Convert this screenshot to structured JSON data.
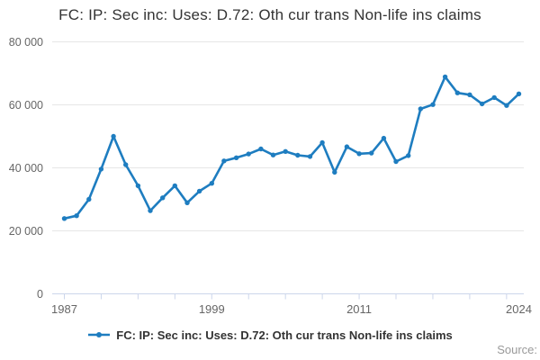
{
  "header": {
    "title": "FC: IP: Sec inc: Uses: D.72: Oth cur trans Non-life ins claims"
  },
  "legend": {
    "label": "FC: IP: Sec inc: Uses: D.72: Oth cur trans Non-life ins claims"
  },
  "footer": {
    "source_label": "Source:"
  },
  "chart_data": {
    "type": "line",
    "title": "FC: IP: Sec inc: Uses: D.72: Oth cur trans Non-life ins claims",
    "xlabel": "",
    "ylabel": "",
    "ylim": [
      0,
      80000
    ],
    "grid": "horizontal",
    "legend_position": "bottom",
    "line_color": "#1e7dc0",
    "grid_color": "#e6e6e6",
    "axis_color": "#ccd6eb",
    "label_color": "#666666",
    "x": [
      1987,
      1988,
      1989,
      1990,
      1991,
      1992,
      1993,
      1994,
      1995,
      1996,
      1997,
      1998,
      1999,
      2000,
      2001,
      2002,
      2003,
      2004,
      2005,
      2006,
      2007,
      2008,
      2009,
      2010,
      2011,
      2012,
      2013,
      2014,
      2015,
      2016,
      2017,
      2018,
      2019,
      2020,
      2021,
      2022,
      2023,
      2024
    ],
    "series": [
      {
        "name": "FC: IP: Sec inc: Uses: D.72: Oth cur trans Non-life ins claims",
        "color": "#1e7dc0",
        "values": [
          23900,
          24800,
          30000,
          39600,
          50000,
          41000,
          34300,
          26400,
          30500,
          34300,
          28900,
          32600,
          35100,
          42200,
          43200,
          44400,
          46000,
          44100,
          45200,
          44000,
          43600,
          48000,
          38600,
          46700,
          44500,
          44700,
          49400,
          42000,
          43900,
          58700,
          60100,
          68900,
          63800,
          63200,
          60300,
          62300,
          59800,
          63500
        ]
      }
    ],
    "y_ticks": [
      {
        "value": 0,
        "label": "0"
      },
      {
        "value": 20000,
        "label": "20 000"
      },
      {
        "value": 40000,
        "label": "40 000"
      },
      {
        "value": 60000,
        "label": "60 000"
      },
      {
        "value": 80000,
        "label": "80 000"
      }
    ],
    "x_tick_years": [
      1987,
      1990,
      1993,
      1996,
      1999,
      2002,
      2005,
      2008,
      2011,
      2014,
      2017,
      2020,
      2023
    ],
    "x_tick_labels": [
      {
        "year": 1987,
        "label": "1987"
      },
      {
        "year": 1999,
        "label": "1999"
      },
      {
        "year": 2011,
        "label": "2011"
      },
      {
        "year": 2024,
        "label": "2024"
      }
    ]
  }
}
